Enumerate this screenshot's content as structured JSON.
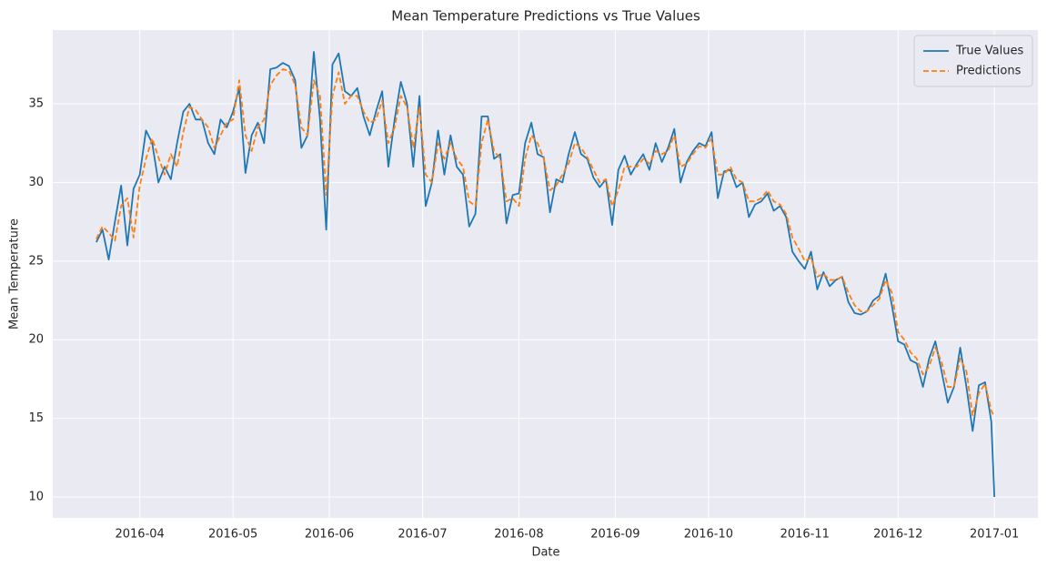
{
  "chart_data": {
    "type": "line",
    "title": "Mean Temperature Predictions vs True Values",
    "xlabel": "Date",
    "ylabel": "Mean Temperature",
    "x": [
      "2016-03-18",
      "2016-03-20",
      "2016-03-22",
      "2016-03-24",
      "2016-03-26",
      "2016-03-28",
      "2016-03-30",
      "2016-04-01",
      "2016-04-03",
      "2016-04-05",
      "2016-04-07",
      "2016-04-09",
      "2016-04-11",
      "2016-04-13",
      "2016-04-15",
      "2016-04-17",
      "2016-04-19",
      "2016-04-21",
      "2016-04-23",
      "2016-04-25",
      "2016-04-27",
      "2016-04-29",
      "2016-05-01",
      "2016-05-03",
      "2016-05-05",
      "2016-05-07",
      "2016-05-09",
      "2016-05-11",
      "2016-05-13",
      "2016-05-15",
      "2016-05-17",
      "2016-05-19",
      "2016-05-21",
      "2016-05-23",
      "2016-05-25",
      "2016-05-27",
      "2016-05-29",
      "2016-05-31",
      "2016-06-02",
      "2016-06-04",
      "2016-06-06",
      "2016-06-08",
      "2016-06-10",
      "2016-06-12",
      "2016-06-14",
      "2016-06-16",
      "2016-06-18",
      "2016-06-20",
      "2016-06-22",
      "2016-06-24",
      "2016-06-26",
      "2016-06-28",
      "2016-06-30",
      "2016-07-02",
      "2016-07-04",
      "2016-07-06",
      "2016-07-08",
      "2016-07-10",
      "2016-07-12",
      "2016-07-14",
      "2016-07-16",
      "2016-07-18",
      "2016-07-20",
      "2016-07-22",
      "2016-07-24",
      "2016-07-26",
      "2016-07-28",
      "2016-07-30",
      "2016-08-01",
      "2016-08-03",
      "2016-08-05",
      "2016-08-07",
      "2016-08-09",
      "2016-08-11",
      "2016-08-13",
      "2016-08-15",
      "2016-08-17",
      "2016-08-19",
      "2016-08-21",
      "2016-08-23",
      "2016-08-25",
      "2016-08-27",
      "2016-08-29",
      "2016-08-31",
      "2016-09-02",
      "2016-09-04",
      "2016-09-06",
      "2016-09-08",
      "2016-09-10",
      "2016-09-12",
      "2016-09-14",
      "2016-09-16",
      "2016-09-18",
      "2016-09-20",
      "2016-09-22",
      "2016-09-24",
      "2016-09-26",
      "2016-09-28",
      "2016-09-30",
      "2016-10-02",
      "2016-10-04",
      "2016-10-06",
      "2016-10-08",
      "2016-10-10",
      "2016-10-12",
      "2016-10-14",
      "2016-10-16",
      "2016-10-18",
      "2016-10-20",
      "2016-10-22",
      "2016-10-24",
      "2016-10-26",
      "2016-10-28",
      "2016-10-30",
      "2016-11-01",
      "2016-11-03",
      "2016-11-05",
      "2016-11-07",
      "2016-11-09",
      "2016-11-11",
      "2016-11-13",
      "2016-11-15",
      "2016-11-17",
      "2016-11-19",
      "2016-11-21",
      "2016-11-23",
      "2016-11-25",
      "2016-11-27",
      "2016-11-29",
      "2016-12-01",
      "2016-12-03",
      "2016-12-05",
      "2016-12-07",
      "2016-12-09",
      "2016-12-11",
      "2016-12-13",
      "2016-12-15",
      "2016-12-17",
      "2016-12-19",
      "2016-12-21",
      "2016-12-23",
      "2016-12-25",
      "2016-12-27",
      "2016-12-29",
      "2016-12-31",
      "2017-01-01"
    ],
    "series": [
      {
        "name": "True Values",
        "color": "#1f77b4",
        "dash": "solid",
        "values": [
          26.2,
          27.0,
          25.1,
          27.5,
          29.8,
          26.0,
          29.6,
          30.5,
          33.3,
          32.5,
          30.0,
          31.0,
          30.2,
          32.5,
          34.5,
          35.0,
          34.0,
          34.0,
          32.5,
          31.8,
          34.0,
          33.5,
          34.5,
          36.0,
          30.6,
          33.0,
          33.8,
          32.5,
          37.2,
          37.3,
          37.6,
          37.4,
          36.5,
          32.2,
          33.0,
          38.3,
          34.0,
          27.0,
          37.5,
          38.2,
          35.8,
          35.5,
          36.0,
          34.2,
          33.0,
          34.5,
          35.8,
          31.0,
          34.0,
          36.4,
          35.0,
          31.0,
          35.5,
          28.5,
          30.0,
          33.3,
          30.5,
          33.0,
          31.0,
          30.5,
          27.2,
          28.0,
          34.2,
          34.2,
          31.5,
          31.8,
          27.4,
          29.2,
          29.3,
          32.5,
          33.8,
          31.8,
          31.6,
          28.1,
          30.2,
          30.0,
          31.8,
          33.2,
          31.8,
          31.5,
          30.3,
          29.7,
          30.2,
          27.3,
          30.8,
          31.7,
          30.5,
          31.2,
          31.8,
          30.8,
          32.5,
          31.3,
          32.2,
          33.4,
          30.0,
          31.3,
          32.0,
          32.5,
          32.3,
          33.2,
          29.0,
          30.7,
          30.8,
          29.7,
          30.0,
          27.8,
          28.6,
          28.8,
          29.3,
          28.2,
          28.5,
          27.8,
          25.6,
          25.0,
          24.5,
          25.6,
          23.2,
          24.3,
          23.4,
          23.8,
          24.0,
          22.4,
          21.7,
          21.6,
          21.8,
          22.5,
          22.8,
          24.2,
          22.2,
          19.9,
          19.7,
          18.7,
          18.5,
          17.0,
          18.8,
          19.9,
          18.0,
          16.0,
          17.0,
          19.5,
          17.0,
          14.2,
          17.1,
          17.3,
          14.8,
          10.0
        ]
      },
      {
        "name": "Predictions",
        "color": "#ff7f0e",
        "dash": "dashed",
        "values": [
          26.4,
          27.2,
          26.8,
          26.3,
          28.5,
          29.0,
          26.5,
          29.8,
          31.5,
          32.8,
          31.6,
          30.5,
          31.8,
          31.0,
          33.2,
          34.8,
          34.6,
          34.0,
          33.5,
          32.2,
          33.0,
          33.8,
          34.0,
          36.5,
          33.0,
          32.0,
          33.5,
          34.0,
          36.2,
          36.8,
          37.2,
          37.1,
          36.2,
          33.5,
          33.0,
          36.5,
          35.5,
          29.2,
          35.5,
          37.0,
          35.0,
          35.5,
          35.5,
          34.5,
          33.8,
          34.0,
          35.2,
          32.5,
          33.5,
          35.5,
          34.8,
          32.2,
          34.8,
          30.5,
          30.0,
          32.5,
          31.5,
          32.5,
          31.5,
          31.0,
          28.8,
          28.5,
          32.5,
          34.0,
          32.0,
          31.5,
          28.8,
          29.0,
          28.5,
          31.5,
          33.0,
          32.5,
          31.5,
          29.5,
          29.8,
          30.5,
          31.2,
          32.5,
          32.2,
          31.6,
          30.8,
          30.0,
          30.2,
          28.5,
          29.5,
          31.0,
          31.0,
          31.0,
          31.5,
          31.2,
          32.0,
          31.8,
          32.0,
          33.0,
          31.0,
          31.2,
          31.8,
          32.3,
          32.2,
          32.8,
          30.5,
          30.5,
          31.0,
          30.2,
          30.0,
          28.8,
          28.8,
          29.0,
          29.5,
          28.8,
          28.6,
          28.0,
          26.5,
          25.8,
          25.0,
          25.2,
          24.0,
          24.2,
          23.8,
          23.8,
          24.0,
          23.0,
          22.2,
          21.8,
          21.8,
          22.2,
          22.6,
          23.8,
          23.0,
          20.5,
          20.0,
          19.2,
          18.8,
          17.8,
          18.3,
          19.5,
          18.6,
          17.0,
          17.0,
          18.8,
          18.0,
          15.2,
          16.6,
          17.2,
          15.5,
          15.1
        ]
      }
    ],
    "xlim": [
      "2016-03-04",
      "2017-01-15"
    ],
    "xticks": [
      {
        "value": "2016-04-01",
        "label": "2016-04"
      },
      {
        "value": "2016-05-01",
        "label": "2016-05"
      },
      {
        "value": "2016-06-01",
        "label": "2016-06"
      },
      {
        "value": "2016-07-01",
        "label": "2016-07"
      },
      {
        "value": "2016-08-01",
        "label": "2016-08"
      },
      {
        "value": "2016-09-01",
        "label": "2016-09"
      },
      {
        "value": "2016-10-01",
        "label": "2016-10"
      },
      {
        "value": "2016-11-01",
        "label": "2016-11"
      },
      {
        "value": "2016-12-01",
        "label": "2016-12"
      },
      {
        "value": "2017-01-01",
        "label": "2017-01"
      }
    ],
    "ylim": [
      8.67,
      39.69
    ],
    "yticks": [
      10,
      15,
      20,
      25,
      30,
      35
    ],
    "grid": true,
    "legend": "upper right"
  }
}
